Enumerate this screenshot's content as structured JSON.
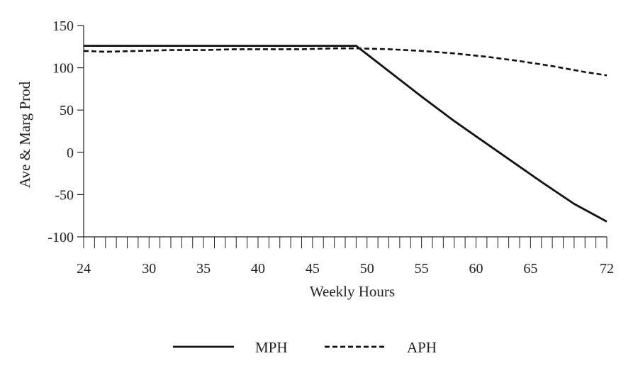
{
  "chart_data": {
    "type": "line",
    "title": "",
    "xlabel": "Weekly Hours",
    "ylabel": "Ave & Marg Prod",
    "xlim": [
      24,
      72
    ],
    "ylim": [
      -100,
      150
    ],
    "x_ticks": [
      24,
      30,
      35,
      40,
      45,
      50,
      55,
      60,
      65,
      72
    ],
    "y_ticks": [
      150,
      100,
      50,
      0,
      -50,
      -100
    ],
    "grid": false,
    "legend_position": "bottom",
    "series": [
      {
        "name": "MPH",
        "style": "solid",
        "color": "#111111",
        "x": [
          24,
          49,
          52,
          55,
          58,
          60,
          63,
          66,
          69,
          72
        ],
        "y": [
          126,
          126,
          96,
          66,
          37,
          19,
          -8,
          -35,
          -61,
          -82
        ]
      },
      {
        "name": "APH",
        "style": "dashed",
        "color": "#111111",
        "x": [
          24,
          26,
          29,
          32,
          35,
          38,
          41,
          44,
          47,
          49,
          52,
          55,
          58,
          61,
          64,
          67,
          70,
          72
        ],
        "y": [
          120,
          119,
          120,
          121,
          121,
          122,
          122,
          122,
          123,
          123,
          122,
          120,
          117,
          113,
          108,
          102,
          95,
          91
        ]
      }
    ]
  }
}
